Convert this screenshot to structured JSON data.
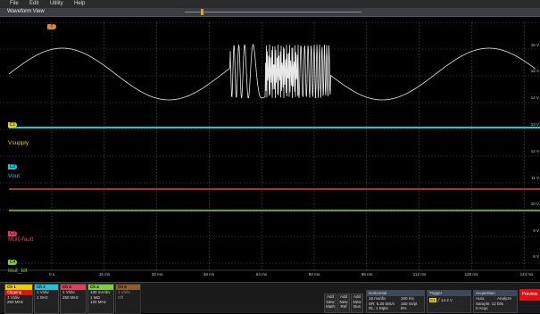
{
  "menu": [
    "File",
    "Edit",
    "Utility",
    "Help"
  ],
  "view_title": "Waveform View",
  "trigger_marker": "T",
  "channels": [
    {
      "badge": "C1",
      "label": "Vsupply",
      "color": "#e8d000"
    },
    {
      "badge": "C2",
      "label": "Vout",
      "color": "#1fc6d6"
    },
    {
      "badge": "C3",
      "label": "Multi-fault",
      "color": "#e0405c"
    },
    {
      "badge": "C4",
      "label": "Iout_tot",
      "color": "#7ad236"
    }
  ],
  "right_scale": [
    "16 V",
    "15 V",
    "14 V",
    "13 V",
    "12 V",
    "11 V",
    "10 V",
    "9 V",
    "8 V"
  ],
  "time_axis": [
    "0 s",
    "16 ms",
    "32 ms",
    "48 ms",
    "64 ms",
    "80 ms",
    "96 ms",
    "112 ms",
    "128 ms",
    "144 ms"
  ],
  "colors": {
    "ch1": "#e8d000",
    "ch2": "#1fc6d6",
    "ch3": "#e0405c",
    "ch4": "#7ad236",
    "ch5": "#e08a30",
    "waveform": "#000000"
  },
  "bottom": {
    "ch1": {
      "hdr": "Ch 1",
      "lines": [
        "Clipping",
        "1 V/div",
        "",
        "250 MHz"
      ]
    },
    "ch2": {
      "hdr": "Ch 2",
      "lines": [
        "1 V/div",
        "",
        "1 GHz"
      ]
    },
    "ch3": {
      "hdr": "Ch 3",
      "lines": [
        "1 V/div",
        "",
        "250 MHz"
      ]
    },
    "ch4": {
      "hdr": "Ch 4",
      "lines": [
        "130 mA/div",
        "1 MΩ",
        "120 MHz"
      ]
    },
    "ch5": {
      "hdr": "Ch 5",
      "lines": [
        "1 V/div",
        "Off"
      ]
    },
    "add_math": [
      "Add",
      "New",
      "Math"
    ],
    "add_ref": [
      "Add",
      "New",
      "Ref"
    ],
    "add_bus": [
      "Add",
      "New",
      "Bus"
    ],
    "horizontal": {
      "hdr": "Horizontal",
      "lines": [
        "16 ms/div",
        "SR: 6.25 MS/s",
        "RL: 1 Mpts"
      ],
      "col2": [
        "160 ms",
        "160 ns/pt",
        "8%"
      ]
    },
    "trigger": {
      "hdr": "Trigger",
      "lines": [
        "14.2 V"
      ]
    },
    "acquisition": {
      "hdr": "Acquisition",
      "lines": [
        "Auto,",
        "Sample: 12 bits",
        "0 Acqs"
      ],
      "col2": [
        "Analyze"
      ]
    },
    "preview": "Preview"
  }
}
